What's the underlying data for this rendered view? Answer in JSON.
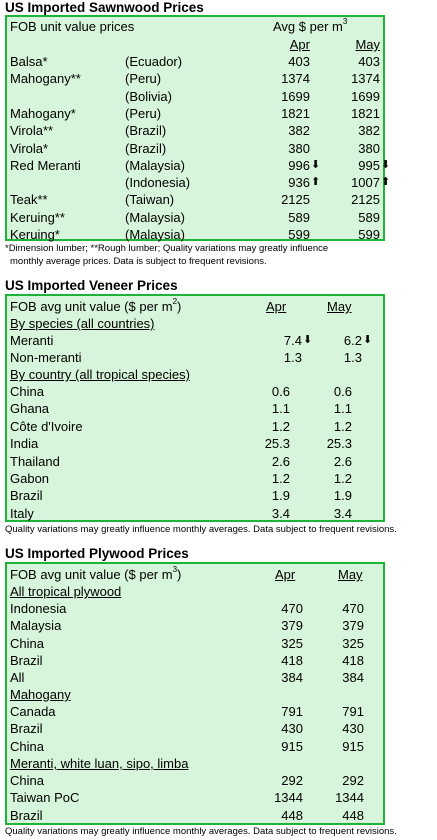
{
  "sawnwood": {
    "title": "US Imported Sawnwood Prices",
    "header_left": "FOB unit value prices",
    "header_right": "Avg $ per m",
    "header_sup": "3",
    "col_apr": "Apr",
    "col_may": "May",
    "rows": [
      {
        "name": "Balsa*",
        "country": "(Ecuador)",
        "apr": "403",
        "may": "403",
        "apr_arrow": "",
        "may_arrow": ""
      },
      {
        "name": "Mahogany**",
        "country": "(Peru)",
        "apr": "1374",
        "may": "1374",
        "apr_arrow": "",
        "may_arrow": ""
      },
      {
        "name": "",
        "country": "(Bolivia)",
        "apr": "1699",
        "may": "1699",
        "apr_arrow": "",
        "may_arrow": ""
      },
      {
        "name": "Mahogany*",
        "country": "(Peru)",
        "apr": "1821",
        "may": "1821",
        "apr_arrow": "",
        "may_arrow": ""
      },
      {
        "name": "Virola**",
        "country": "(Brazil)",
        "apr": "382",
        "may": "382",
        "apr_arrow": "",
        "may_arrow": ""
      },
      {
        "name": "Virola*",
        "country": "(Brazil)",
        "apr": "380",
        "may": "380",
        "apr_arrow": "",
        "may_arrow": ""
      },
      {
        "name": "Red Meranti",
        "country": "(Malaysia)",
        "apr": "996",
        "may": "995",
        "apr_arrow": "⬇",
        "may_arrow": "⬇"
      },
      {
        "name": "",
        "country": "(Indonesia)",
        "apr": "936",
        "may": "1007",
        "apr_arrow": "⬆",
        "may_arrow": "⬆"
      },
      {
        "name": "Teak**",
        "country": "(Taiwan)",
        "apr": "2125",
        "may": "2125",
        "apr_arrow": "",
        "may_arrow": ""
      },
      {
        "name": "Keruing**",
        "country": "(Malaysia)",
        "apr": "589",
        "may": "589",
        "apr_arrow": "",
        "may_arrow": ""
      },
      {
        "name": "Keruing*",
        "country": "(Malaysia)",
        "apr": "599",
        "may": "599",
        "apr_arrow": "",
        "may_arrow": ""
      }
    ],
    "note_line1": "*Dimension lumber; **Rough lumber; Quality variations may greatly influence",
    "note_line2": "monthly average prices. Data is subject to frequent revisions."
  },
  "veneer": {
    "title": "US Imported Veneer Prices",
    "header_left": "FOB avg unit value ($ per m",
    "header_sup": "2",
    "header_close": ")",
    "col_apr": "Apr",
    "col_may": "May",
    "group1": "By species (all countries)",
    "species_rows": [
      {
        "name": "Meranti",
        "apr": "7.4",
        "may": "6.2",
        "apr_arrow": "⬇",
        "may_arrow": "⬇"
      },
      {
        "name": "Non-meranti",
        "apr": "1.3",
        "may": "1.3",
        "apr_arrow": "",
        "may_arrow": ""
      }
    ],
    "group2": "By country (all tropical species)",
    "country_rows": [
      {
        "name": "China",
        "apr": "0.6",
        "may": "0.6"
      },
      {
        "name": "Ghana",
        "apr": "1.1",
        "may": "1.1"
      },
      {
        "name": "Côte d'Ivoire",
        "apr": "1.2",
        "may": "1.2"
      },
      {
        "name": "India",
        "apr": "25.3",
        "may": "25.3"
      },
      {
        "name": "Thailand",
        "apr": "2.6",
        "may": "2.6"
      },
      {
        "name": "Gabon",
        "apr": "1.2",
        "may": "1.2"
      },
      {
        "name": "Brazil",
        "apr": "1.9",
        "may": "1.9"
      },
      {
        "name": "Italy",
        "apr": "3.4",
        "may": "3.4"
      }
    ],
    "note": "Quality variations may greatly influence monthly averages. Data subject to frequent revisions."
  },
  "plywood": {
    "title": "US Imported Plywood Prices",
    "header_left": "FOB avg unit value ($ per m",
    "header_sup": "3",
    "header_close": ")",
    "col_apr": "Apr",
    "col_may": "May",
    "group1": "All tropical plywood",
    "group1_rows": [
      {
        "name": "Indonesia",
        "apr": "470",
        "may": "470"
      },
      {
        "name": "Malaysia",
        "apr": "379",
        "may": "379"
      },
      {
        "name": "China",
        "apr": "325",
        "may": "325"
      },
      {
        "name": "Brazil",
        "apr": "418",
        "may": "418"
      },
      {
        "name": "All",
        "apr": "384",
        "may": "384"
      }
    ],
    "group2": "Mahogany",
    "group2_rows": [
      {
        "name": "Canada",
        "apr": "791",
        "may": "791"
      },
      {
        "name": "Brazil",
        "apr": "430",
        "may": "430"
      },
      {
        "name": "China",
        "apr": "915",
        "may": "915"
      }
    ],
    "group3": "Meranti, white luan, sipo, limba",
    "group3_rows": [
      {
        "name": "China",
        "apr": "292",
        "may": "292"
      },
      {
        "name": "Taiwan PoC",
        "apr": "1344",
        "may": "1344"
      },
      {
        "name": "Brazil",
        "apr": "448",
        "may": "448"
      }
    ],
    "note": "Quality variations may greatly influence monthly averages. Data subject to frequent revisions."
  }
}
